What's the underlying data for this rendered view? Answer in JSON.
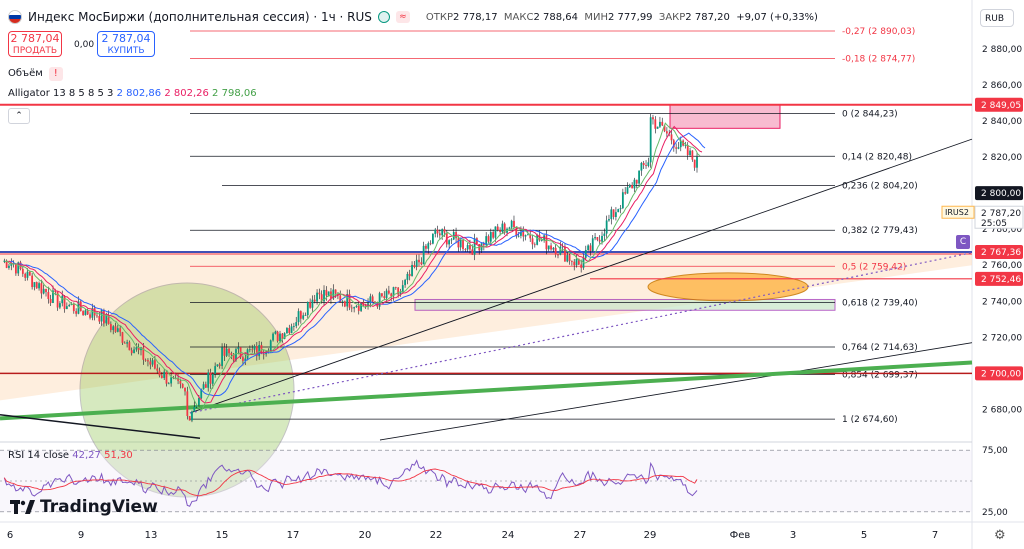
{
  "header": {
    "title": "Индекс МосБиржи (дополнительная сессия) · 1ч · RUS",
    "open_label": "ОТКР",
    "open": "2 778,17",
    "high_label": "МАКС",
    "high": "2 788,64",
    "low_label": "МИН",
    "low": "2 777,99",
    "close_label": "ЗАКР",
    "close": "2 787,20",
    "change": "+9,07 (+0,33%)",
    "currency": "RUB"
  },
  "trade": {
    "sell_price": "2 787,04",
    "sell_label": "ПРОДАТЬ",
    "spread": "0,00",
    "buy_price": "2 787,04",
    "buy_label": "КУПИТЬ"
  },
  "indicators": {
    "volume_label": "Объём",
    "alligator_label": "Alligator 13 8 5 8 5 3",
    "alligator_jaw": "2 802,86",
    "alligator_teeth": "2 802,26",
    "alligator_lips": "2 798,06",
    "rsi_label": "RSI 14 close",
    "rsi_value": "42,27",
    "rsi_ma": "51,30"
  },
  "colors": {
    "up": "#089981",
    "down": "#f23645",
    "jaw": "#2962ff",
    "teeth": "#e91e63",
    "lips": "#66bb6a",
    "fib": "#131722",
    "rsi": "#7e57c2",
    "rsi_ma": "#f23645"
  },
  "badges": {
    "irus": "IRUS2",
    "irus_price": "2 787,20",
    "irus_timer": "25:05",
    "c_badge": "C"
  },
  "brand": "TradingView",
  "chart_data": [
    {
      "type": "candlestick",
      "title": "Индекс МосБиржи (дополнительная сессия)",
      "timeframe": "1ч",
      "y_axis": {
        "range": [
          2663,
          2905
        ],
        "ticks": [
          2680,
          2700,
          2720,
          2740,
          2760,
          2780,
          2800,
          2820,
          2840,
          2860,
          2880
        ],
        "tick_labels": [
          "2 680,00",
          "2 700,00",
          "2 720,00",
          "2 740,00",
          "2 760,00",
          "2 780,00",
          "2 800,00",
          "2 820,00",
          "2 840,00",
          "2 860,00",
          "2 880,00"
        ]
      },
      "x_axis": {
        "ticks": [
          "6",
          "9",
          "13",
          "15",
          "17",
          "20",
          "22",
          "24",
          "27",
          "29",
          "Фев",
          "3",
          "5",
          "7"
        ]
      },
      "price_path_approx": [
        [
          "6",
          2762
        ],
        [
          "8",
          2740
        ],
        [
          "9",
          2735
        ],
        [
          "10",
          2733
        ],
        [
          "13",
          2705
        ],
        [
          "14",
          2688
        ],
        [
          "14",
          2675
        ],
        [
          "15",
          2710
        ],
        [
          "16",
          2712
        ],
        [
          "17",
          2728
        ],
        [
          "18",
          2745
        ],
        [
          "20",
          2738
        ],
        [
          "21",
          2745
        ],
        [
          "22",
          2778
        ],
        [
          "23",
          2770
        ],
        [
          "24",
          2782
        ],
        [
          "26",
          2770
        ],
        [
          "27",
          2760
        ],
        [
          "28",
          2790
        ],
        [
          "29",
          2820
        ],
        [
          "29",
          2842
        ],
        [
          "30",
          2815
        ],
        [
          "30",
          2772
        ],
        [
          "30",
          2787
        ]
      ],
      "price_marks": [
        {
          "label": "2 849,05",
          "value": 2849.05,
          "color": "#f23645"
        },
        {
          "label": "2 800,00",
          "value": 2800.0,
          "color": "#131722"
        },
        {
          "label": "2 787,20",
          "value": 2787.2,
          "color": "#ffffff"
        },
        {
          "label": "2 767,36",
          "value": 2767.36,
          "color": "#f23645"
        },
        {
          "label": "2 752,46",
          "value": 2752.46,
          "color": "#f23645"
        },
        {
          "label": "2 700,00",
          "value": 2700.0,
          "color": "#f23645"
        }
      ],
      "fibonacci": [
        {
          "label": "-0,27 (2 890,03)",
          "value": 2890.03
        },
        {
          "label": "-0,18 (2 874,77)",
          "value": 2874.77
        },
        {
          "label": "0 (2 844,23)",
          "value": 2844.23
        },
        {
          "label": "0,14 (2 820,48)",
          "value": 2820.48
        },
        {
          "label": "0,236 (2 804,20)",
          "value": 2804.2
        },
        {
          "label": "0,382 (2 779,43)",
          "value": 2779.43
        },
        {
          "label": "0,5 (2 759,42)",
          "value": 2759.42
        },
        {
          "label": "0,618 (2 739,40)",
          "value": 2739.4
        },
        {
          "label": "0,764 (2 714,63)",
          "value": 2714.63
        },
        {
          "label": "0,854 (2 699,37)",
          "value": 2699.37
        },
        {
          "label": "1 (2 674,60)",
          "value": 2674.6
        }
      ]
    },
    {
      "type": "line",
      "title": "RSI 14 close",
      "y_axis": {
        "range": [
          20,
          80
        ],
        "ticks": [
          25,
          75
        ],
        "tick_labels": [
          "25,00",
          "75,00"
        ]
      },
      "series": [
        {
          "name": "RSI",
          "last": 42.27
        },
        {
          "name": "RSI MA",
          "last": 51.3
        }
      ]
    }
  ]
}
